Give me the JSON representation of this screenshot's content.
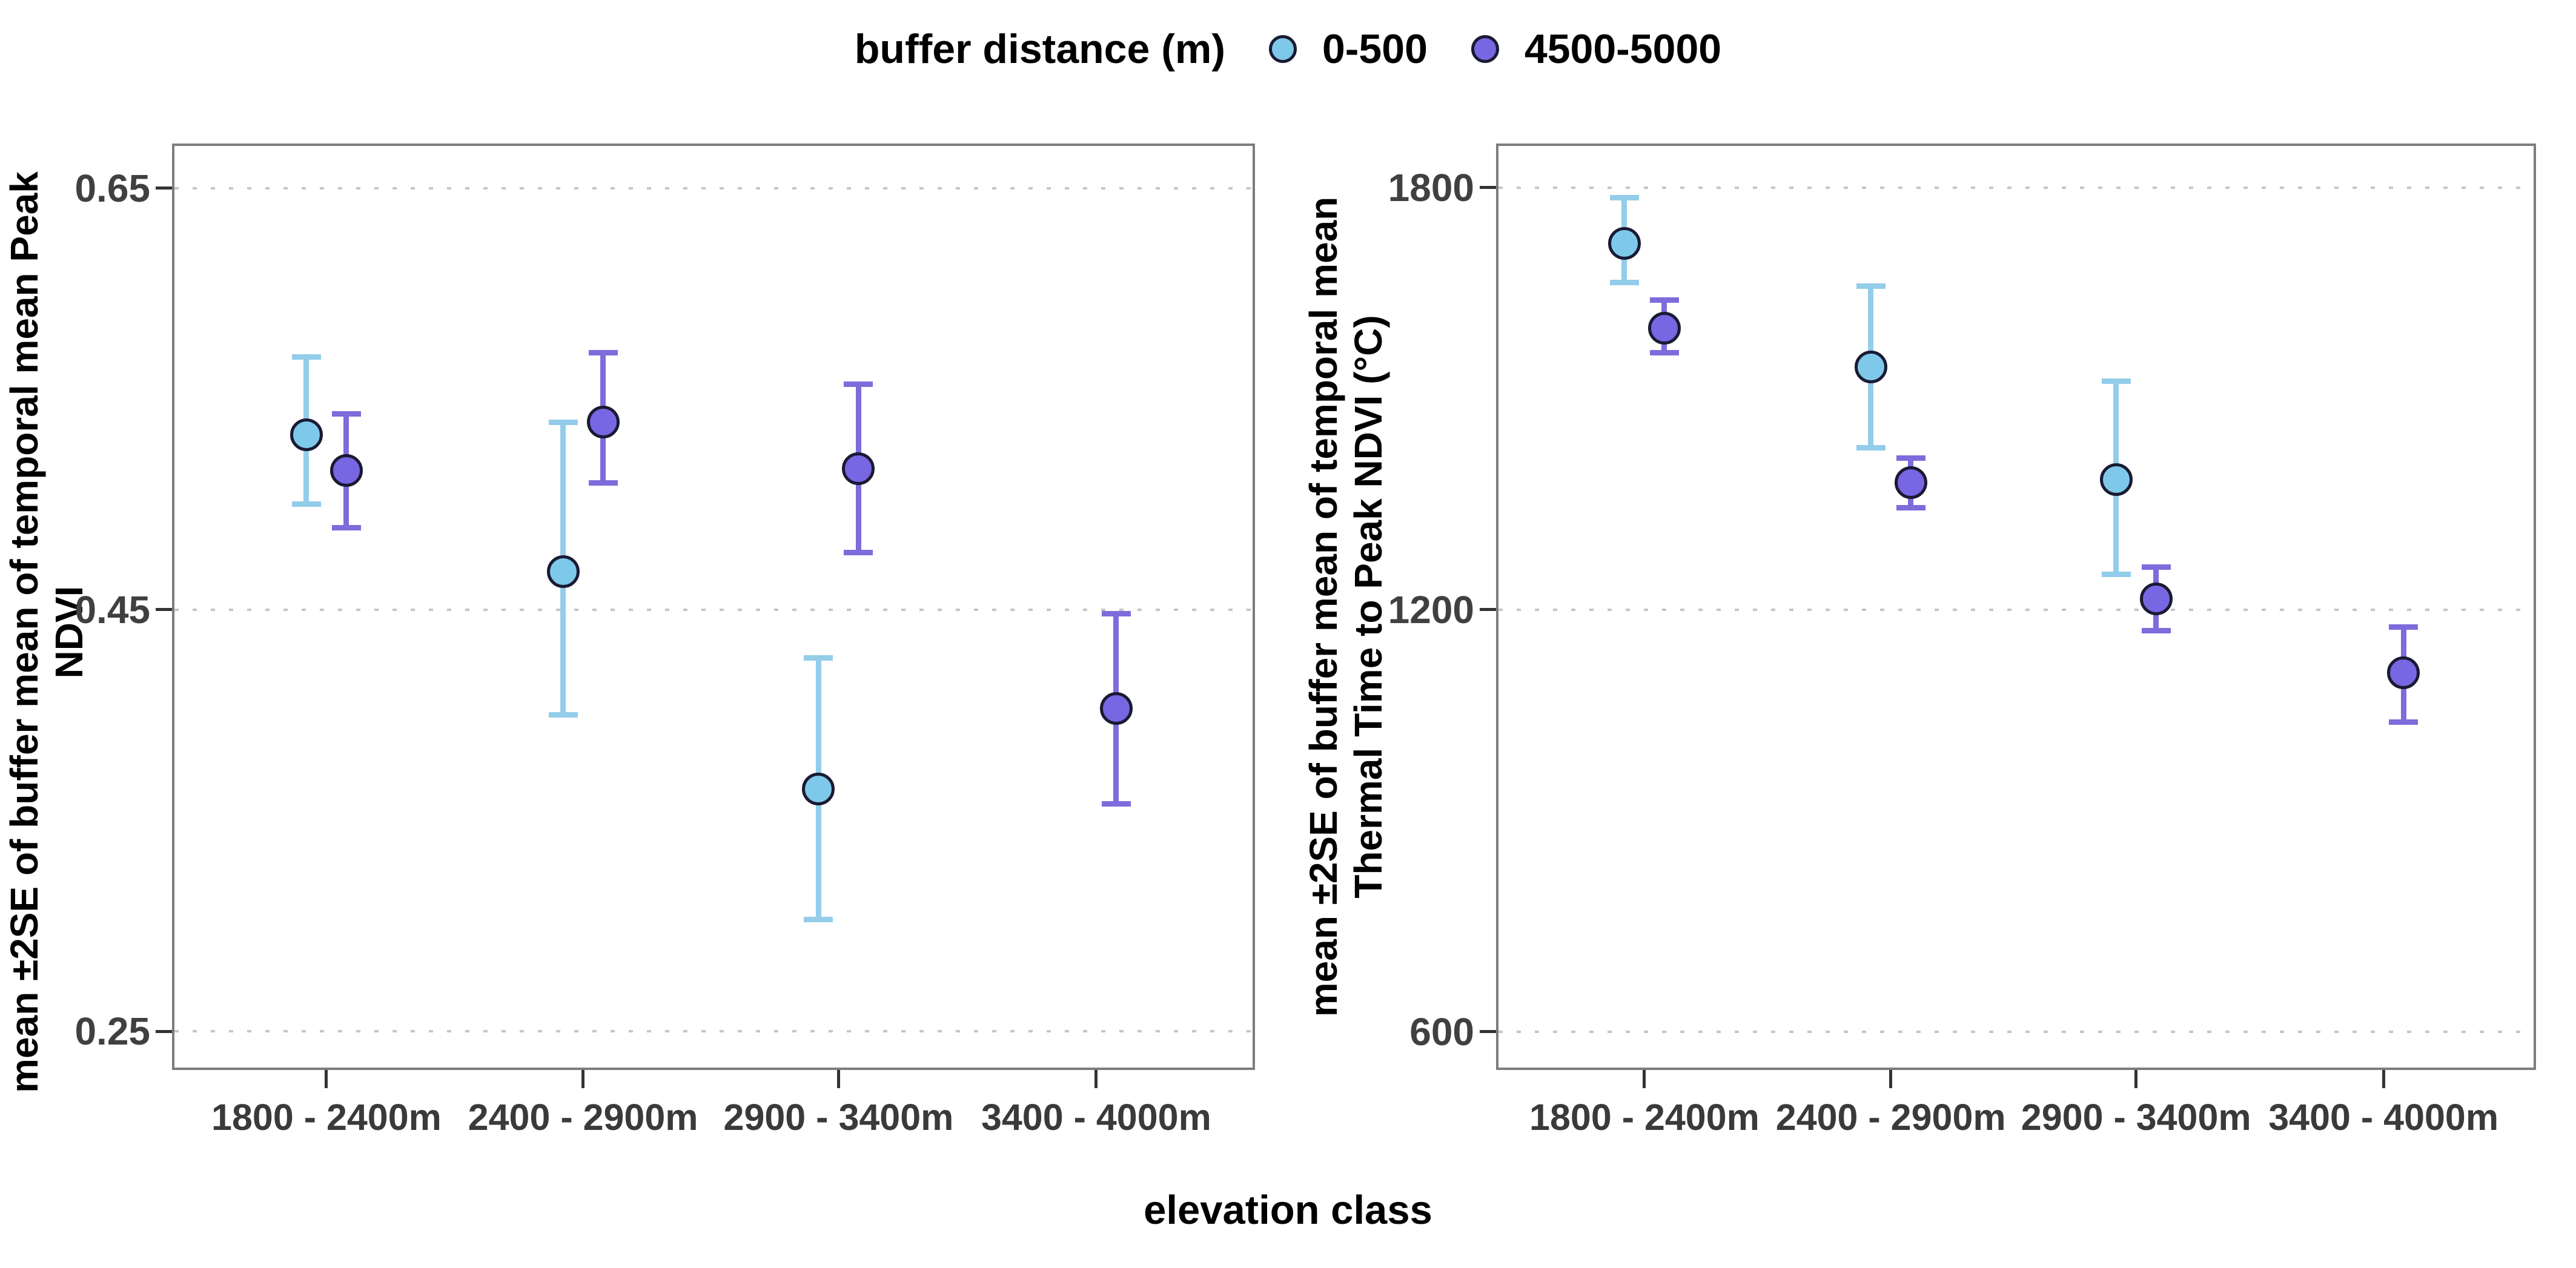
{
  "legend": {
    "title": "buffer distance (m)",
    "items": [
      {
        "label": "0-500"
      },
      {
        "label": "4500-5000"
      }
    ]
  },
  "x_axis": {
    "title": "elevation class"
  },
  "colors": {
    "series": {
      "0-500": {
        "marker_fill": "#7EC8EA",
        "errorbar": "#93CDEA"
      },
      "4500-5000": {
        "marker_fill": "#7866E2",
        "errorbar": "#7D6CDC"
      }
    },
    "marker_outline": "#1a1a33",
    "gridline": "#c6c6c6",
    "panel_border": "#7d7d7d",
    "tick_label": "#404040",
    "axis_title": "#000000"
  },
  "chart_data": [
    {
      "type": "scatter",
      "subtype": "pointrange-errorbar",
      "panel": "left",
      "ylabel": "mean ±2SE of buffer mean of temporal mean Peak NDVI",
      "ylabel_lines": [
        "mean ±2SE of buffer mean of temporal mean Peak NDVI"
      ],
      "categories": [
        "1800 - 2400m",
        "2400 - 2900m",
        "2900 - 3400m",
        "3400 - 4000m"
      ],
      "yticks": [
        {
          "label": "0.65",
          "value": 0.65
        },
        {
          "label": "0.45",
          "value": 0.45
        },
        {
          "label": "0.25",
          "value": 0.25
        }
      ],
      "ylim": [
        0.2305,
        0.67
      ],
      "grid": "dotted horizontal at each ytick",
      "legend_position": "top",
      "series": [
        {
          "name": "0-500",
          "points": [
            {
              "category": "1800 - 2400m",
              "mean": 0.533,
              "lower": 0.5,
              "upper": 0.57
            },
            {
              "category": "2400 - 2900m",
              "mean": 0.468,
              "lower": 0.4,
              "upper": 0.539
            },
            {
              "category": "2900 - 3400m",
              "mean": 0.365,
              "lower": 0.303,
              "upper": 0.427
            },
            {
              "category": "3400 - 4000m",
              "mean": null,
              "lower": null,
              "upper": null
            }
          ]
        },
        {
          "name": "4500-5000",
          "points": [
            {
              "category": "1800 - 2400m",
              "mean": 0.516,
              "lower": 0.489,
              "upper": 0.543
            },
            {
              "category": "2400 - 2900m",
              "mean": 0.539,
              "lower": 0.51,
              "upper": 0.572
            },
            {
              "category": "2900 - 3400m",
              "mean": 0.517,
              "lower": 0.477,
              "upper": 0.557
            },
            {
              "category": "3400 - 4000m",
              "mean": 0.403,
              "lower": 0.358,
              "upper": 0.448
            }
          ]
        }
      ]
    },
    {
      "type": "scatter",
      "subtype": "pointrange-errorbar",
      "panel": "right",
      "ylabel": "mean ±2SE of buffer mean of temporal mean Thermal Time to Peak NDVI (°C)",
      "ylabel_lines": [
        "mean ±2SE of buffer mean of temporal mean",
        "Thermal Time to Peak NDVI (°C)"
      ],
      "categories": [
        "1800 - 2400m",
        "2400 - 2900m",
        "2900 - 3400m",
        "3400 - 4000m"
      ],
      "yticks": [
        {
          "label": "1800",
          "value": 1800
        },
        {
          "label": "1200",
          "value": 1200
        },
        {
          "label": "600",
          "value": 600
        }
      ],
      "ylim": [
        542,
        1859
      ],
      "grid": "dotted horizontal at each ytick",
      "legend_position": "top",
      "series": [
        {
          "name": "0-500",
          "points": [
            {
              "category": "1800 - 2400m",
              "mean": 1720,
              "lower": 1665,
              "upper": 1785
            },
            {
              "category": "2400 - 2900m",
              "mean": 1545,
              "lower": 1430,
              "upper": 1660
            },
            {
              "category": "2900 - 3400m",
              "mean": 1385,
              "lower": 1250,
              "upper": 1525
            },
            {
              "category": "3400 - 4000m",
              "mean": null,
              "lower": null,
              "upper": null
            }
          ]
        },
        {
          "name": "4500-5000",
          "points": [
            {
              "category": "1800 - 2400m",
              "mean": 1600,
              "lower": 1565,
              "upper": 1640
            },
            {
              "category": "2400 - 2900m",
              "mean": 1380,
              "lower": 1345,
              "upper": 1415
            },
            {
              "category": "2900 - 3400m",
              "mean": 1215,
              "lower": 1170,
              "upper": 1260
            },
            {
              "category": "3400 - 4000m",
              "mean": 1110,
              "lower": 1040,
              "upper": 1175
            }
          ]
        }
      ]
    }
  ]
}
